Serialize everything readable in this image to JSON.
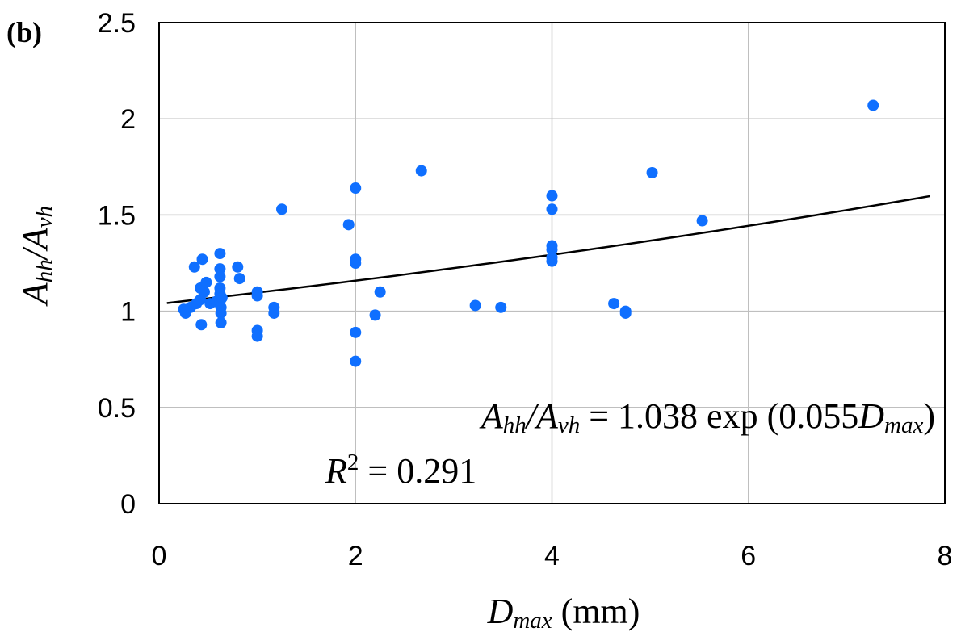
{
  "panel_label": "(b)",
  "chart_data": {
    "type": "scatter",
    "xlim": [
      0,
      8
    ],
    "ylim": [
      0,
      2.5
    ],
    "x_ticks": [
      0,
      2,
      4,
      6,
      8
    ],
    "y_ticks": [
      0,
      0.5,
      1,
      1.5,
      2,
      2.5
    ],
    "x_tick_labels": [
      "0",
      "2",
      "4",
      "6",
      "8"
    ],
    "y_tick_labels": [
      "0",
      "0.5",
      "1",
      "1.5",
      "2",
      "2.5"
    ],
    "grid": true,
    "xlabel": {
      "var": "D",
      "sub": "max",
      "unit": " (mm)"
    },
    "ylabel": {
      "a": "A",
      "a_sub": "hh",
      "b": "A",
      "b_sub": "vh"
    },
    "equation": {
      "lhs_a": "A",
      "lhs_a_sub": "hh",
      "lhs_b": "A",
      "lhs_b_sub": "vh",
      "rhs_prefix": " = 1.038 exp (0.055",
      "rhs_var": "D",
      "rhs_var_sub": "max",
      "rhs_suffix": ")"
    },
    "r_squared": {
      "label": "R",
      "sup": "2",
      "value": " = 0.291"
    },
    "trendline": {
      "a": 1.038,
      "b": 0.055,
      "x_range": [
        0.08,
        7.85
      ]
    },
    "colors": {
      "points": "#0F6FFF",
      "trendline": "#000000",
      "grid": "#BFBFBF",
      "axis": "#000000"
    },
    "points": [
      [
        0.25,
        1.01
      ],
      [
        0.27,
        0.99
      ],
      [
        0.32,
        1.02
      ],
      [
        0.36,
        1.23
      ],
      [
        0.38,
        1.04
      ],
      [
        0.42,
        1.06
      ],
      [
        0.42,
        1.12
      ],
      [
        0.43,
        0.93
      ],
      [
        0.44,
        1.27
      ],
      [
        0.46,
        1.1
      ],
      [
        0.48,
        1.15
      ],
      [
        0.52,
        1.04
      ],
      [
        0.58,
        1.05
      ],
      [
        0.62,
        1.3
      ],
      [
        0.62,
        1.22
      ],
      [
        0.62,
        1.18
      ],
      [
        0.62,
        1.12
      ],
      [
        0.62,
        1.09
      ],
      [
        0.62,
        1.05
      ],
      [
        0.63,
        1.02
      ],
      [
        0.63,
        0.99
      ],
      [
        0.63,
        0.94
      ],
      [
        0.64,
        1.07
      ],
      [
        0.8,
        1.23
      ],
      [
        0.82,
        1.17
      ],
      [
        1.0,
        1.1
      ],
      [
        1.0,
        1.08
      ],
      [
        1.0,
        0.9
      ],
      [
        1.0,
        0.87
      ],
      [
        1.17,
        1.02
      ],
      [
        1.17,
        0.99
      ],
      [
        1.25,
        1.53
      ],
      [
        1.93,
        1.45
      ],
      [
        2.0,
        1.64
      ],
      [
        2.0,
        1.27
      ],
      [
        2.0,
        1.25
      ],
      [
        2.0,
        0.89
      ],
      [
        2.0,
        0.74
      ],
      [
        2.2,
        0.98
      ],
      [
        2.25,
        1.1
      ],
      [
        2.67,
        1.73
      ],
      [
        3.22,
        1.03
      ],
      [
        3.48,
        1.02
      ],
      [
        4.0,
        1.6
      ],
      [
        4.0,
        1.53
      ],
      [
        4.0,
        1.34
      ],
      [
        4.0,
        1.32
      ],
      [
        4.0,
        1.28
      ],
      [
        4.0,
        1.26
      ],
      [
        4.63,
        1.04
      ],
      [
        4.75,
        1.0
      ],
      [
        4.75,
        0.99
      ],
      [
        5.02,
        1.72
      ],
      [
        5.53,
        1.47
      ],
      [
        7.27,
        2.07
      ]
    ]
  }
}
